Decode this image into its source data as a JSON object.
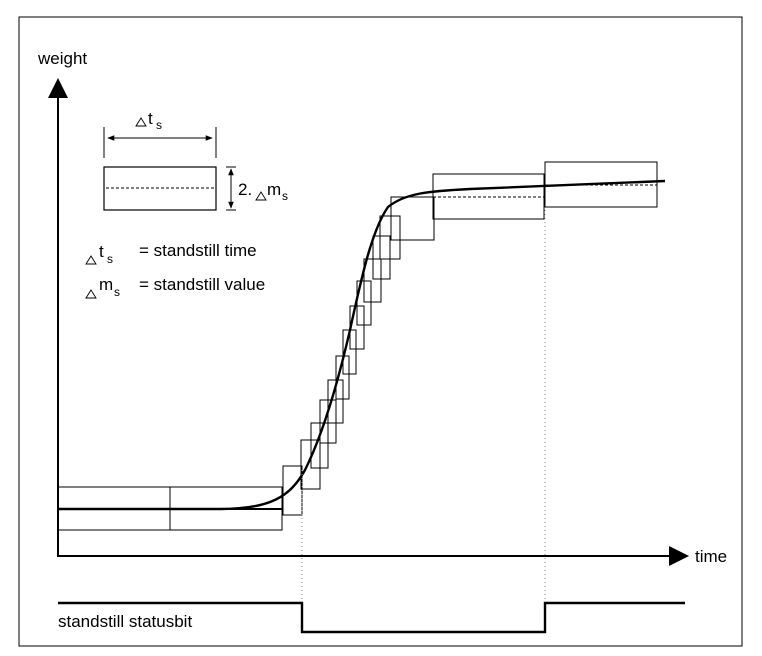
{
  "axes": {
    "y_label": "weight",
    "x_label": "time"
  },
  "legend": {
    "ts_symbol": "t",
    "ts_sub": "s",
    "ms_symbol": "m",
    "ms_sub": "s",
    "factor": "2.",
    "ts_def": "= standstill time",
    "ms_def": "= standstill value"
  },
  "status": {
    "label": "standstill statusbit"
  }
}
